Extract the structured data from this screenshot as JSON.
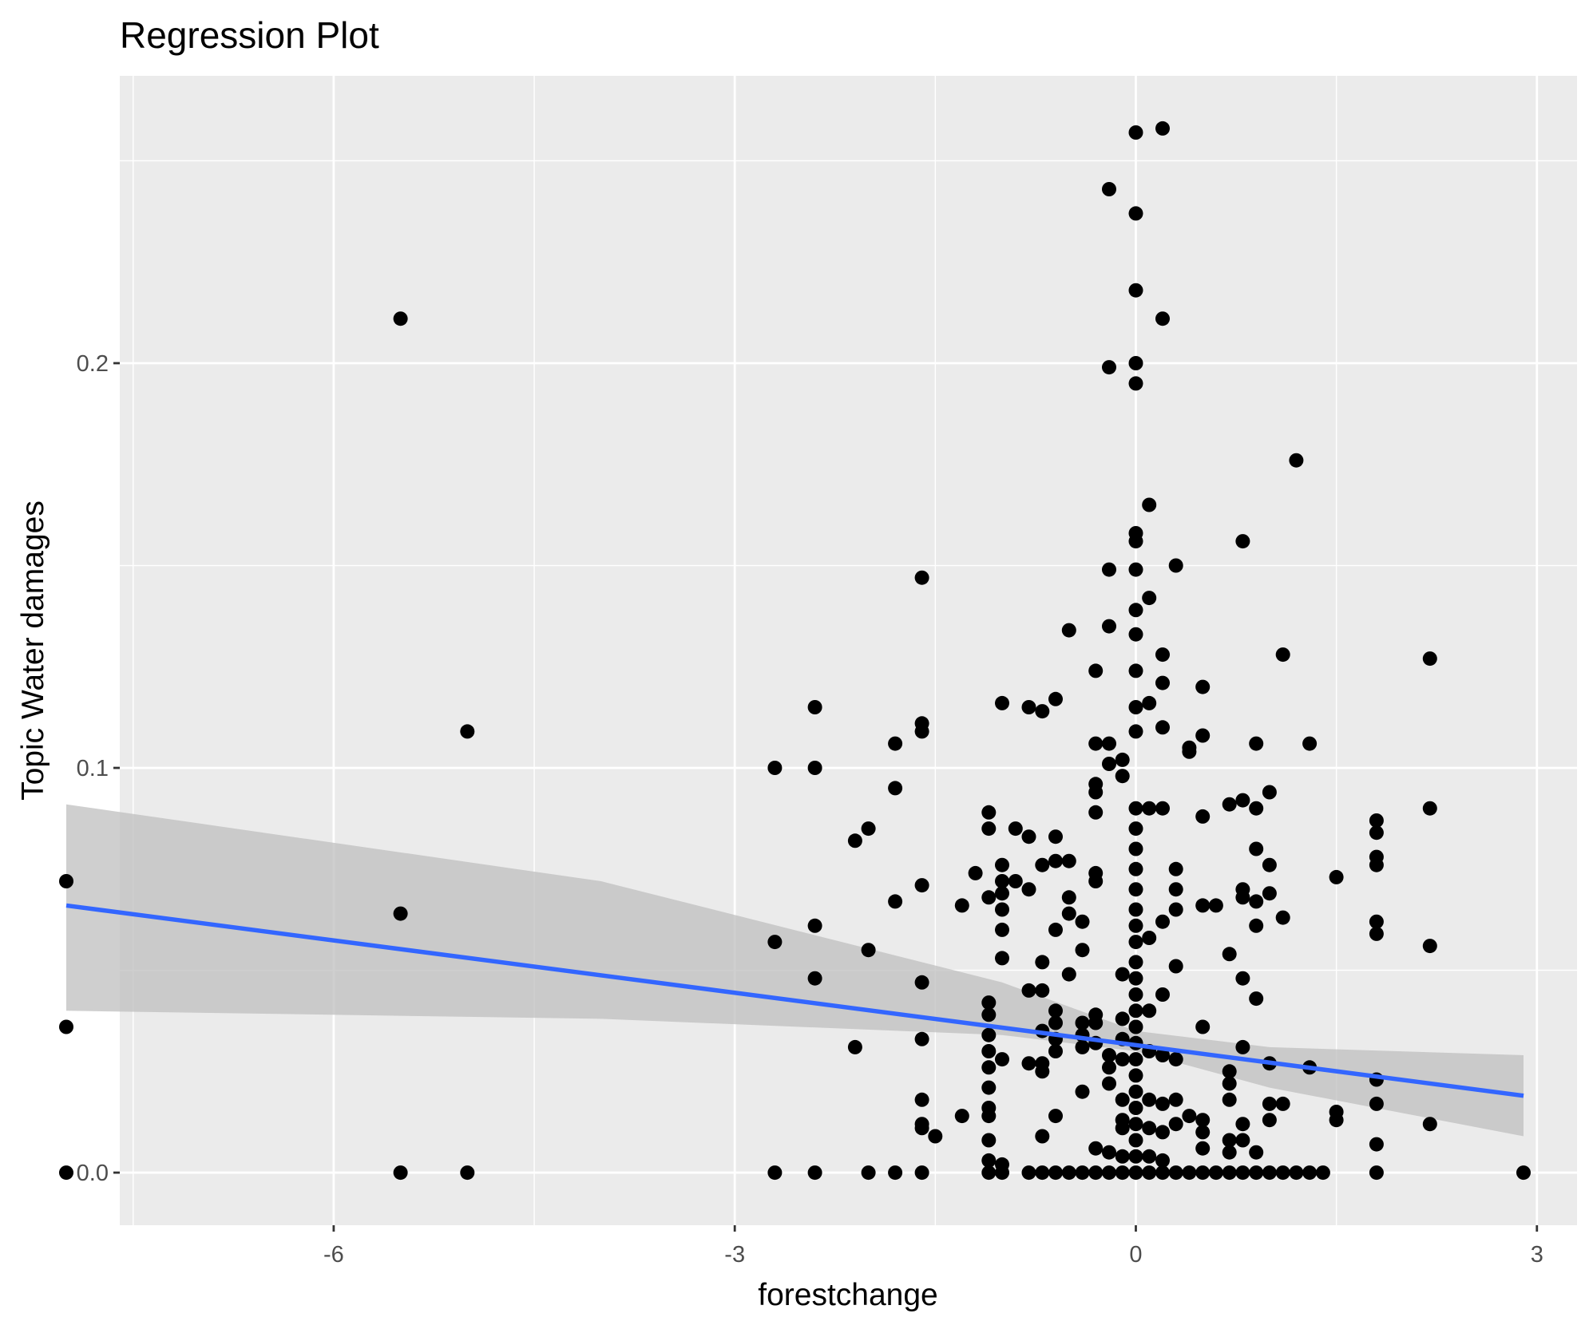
{
  "chart_data": {
    "type": "scatter",
    "title": "Regression Plot",
    "xlabel": "forestchange",
    "ylabel": "Topic Water damages",
    "xlim": [
      -7.6,
      3.3
    ],
    "ylim": [
      -0.013,
      0.271
    ],
    "x_ticks": [
      {
        "value": -6,
        "label": "-6"
      },
      {
        "value": -3,
        "label": "-3"
      },
      {
        "value": 0,
        "label": "0"
      },
      {
        "value": 3,
        "label": "3"
      }
    ],
    "y_ticks": [
      {
        "value": 0.0,
        "label": "0.0"
      },
      {
        "value": 0.1,
        "label": "0.1"
      },
      {
        "value": 0.2,
        "label": "0.2"
      }
    ],
    "grid": true,
    "colors": {
      "panel_background": "#ebebeb",
      "grid": "#ffffff",
      "points": "#000000",
      "regression_line": "#3366ff",
      "confidence_band": "#bfbfbf"
    },
    "regression": {
      "x": [
        -8.0,
        2.9
      ],
      "y": [
        0.066,
        0.019
      ],
      "band_x": [
        -8.0,
        -4.0,
        -1.0,
        0.0,
        1.0,
        2.9
      ],
      "band_upper": [
        0.091,
        0.072,
        0.047,
        0.035,
        0.031,
        0.029
      ],
      "band_lower": [
        0.04,
        0.038,
        0.034,
        0.03,
        0.021,
        0.009
      ]
    },
    "points": [
      [
        -8,
        0.072
      ],
      [
        -8,
        0.036
      ],
      [
        -8,
        0
      ],
      [
        -5.5,
        0.211
      ],
      [
        -5.5,
        0.064
      ],
      [
        -5.5,
        0
      ],
      [
        -5,
        0.109
      ],
      [
        -5,
        0
      ],
      [
        -2.7,
        0.1
      ],
      [
        -2.7,
        0.057
      ],
      [
        -2.7,
        0
      ],
      [
        -2.4,
        0.115
      ],
      [
        -2.4,
        0.1
      ],
      [
        -2.4,
        0.061
      ],
      [
        -2.4,
        0.048
      ],
      [
        -2.4,
        0
      ],
      [
        -2.1,
        0.082
      ],
      [
        -2.1,
        0.031
      ],
      [
        -2,
        0.085
      ],
      [
        -2,
        0.055
      ],
      [
        -2,
        0
      ],
      [
        -1.8,
        0.106
      ],
      [
        -1.8,
        0.095
      ],
      [
        -1.8,
        0.067
      ],
      [
        -1.8,
        0
      ],
      [
        -1.6,
        0.147
      ],
      [
        -1.6,
        0.111
      ],
      [
        -1.6,
        0.109
      ],
      [
        -1.6,
        0.071
      ],
      [
        -1.6,
        0.047
      ],
      [
        -1.6,
        0.033
      ],
      [
        -1.6,
        0.018
      ],
      [
        -1.6,
        0.012
      ],
      [
        -1.6,
        0.011
      ],
      [
        -1.6,
        0
      ],
      [
        -1.5,
        0.009
      ],
      [
        -1.3,
        0.066
      ],
      [
        -1.3,
        0.014
      ],
      [
        -1.2,
        0.074
      ],
      [
        -1.1,
        0.089
      ],
      [
        -1.1,
        0.085
      ],
      [
        -1.1,
        0.068
      ],
      [
        -1.1,
        0.042
      ],
      [
        -1.1,
        0.039
      ],
      [
        -1.1,
        0.034
      ],
      [
        -1.1,
        0.03
      ],
      [
        -1.1,
        0.026
      ],
      [
        -1.1,
        0.021
      ],
      [
        -1.1,
        0.016
      ],
      [
        -1.1,
        0.014
      ],
      [
        -1.1,
        0.008
      ],
      [
        -1.1,
        0.003
      ],
      [
        -1.1,
        0
      ],
      [
        -1,
        0.116
      ],
      [
        -1,
        0.076
      ],
      [
        -1,
        0.072
      ],
      [
        -1,
        0.069
      ],
      [
        -1,
        0.065
      ],
      [
        -1,
        0.06
      ],
      [
        -1,
        0.053
      ],
      [
        -1,
        0.028
      ],
      [
        -1,
        0.002
      ],
      [
        -1,
        0
      ],
      [
        -0.9,
        0.085
      ],
      [
        -0.9,
        0.072
      ],
      [
        -0.8,
        0.115
      ],
      [
        -0.8,
        0.083
      ],
      [
        -0.8,
        0.07
      ],
      [
        -0.8,
        0.045
      ],
      [
        -0.8,
        0.027
      ],
      [
        -0.8,
        0
      ],
      [
        -0.7,
        0.114
      ],
      [
        -0.7,
        0.076
      ],
      [
        -0.7,
        0.052
      ],
      [
        -0.7,
        0.045
      ],
      [
        -0.7,
        0.035
      ],
      [
        -0.7,
        0.027
      ],
      [
        -0.7,
        0.025
      ],
      [
        -0.7,
        0.009
      ],
      [
        -0.7,
        0
      ],
      [
        -0.6,
        0.117
      ],
      [
        -0.6,
        0.083
      ],
      [
        -0.6,
        0.077
      ],
      [
        -0.6,
        0.06
      ],
      [
        -0.6,
        0.04
      ],
      [
        -0.6,
        0.037
      ],
      [
        -0.6,
        0.033
      ],
      [
        -0.6,
        0.03
      ],
      [
        -0.6,
        0.014
      ],
      [
        -0.6,
        0
      ],
      [
        -0.5,
        0.134
      ],
      [
        -0.5,
        0.077
      ],
      [
        -0.5,
        0.068
      ],
      [
        -0.5,
        0.064
      ],
      [
        -0.5,
        0.049
      ],
      [
        -0.5,
        0
      ],
      [
        -0.4,
        0.062
      ],
      [
        -0.4,
        0.055
      ],
      [
        -0.4,
        0.037
      ],
      [
        -0.4,
        0.034
      ],
      [
        -0.4,
        0.031
      ],
      [
        -0.4,
        0.02
      ],
      [
        -0.4,
        0
      ],
      [
        -0.3,
        0.124
      ],
      [
        -0.3,
        0.106
      ],
      [
        -0.3,
        0.096
      ],
      [
        -0.3,
        0.094
      ],
      [
        -0.3,
        0.089
      ],
      [
        -0.3,
        0.074
      ],
      [
        -0.3,
        0.072
      ],
      [
        -0.3,
        0.039
      ],
      [
        -0.3,
        0.037
      ],
      [
        -0.3,
        0.032
      ],
      [
        -0.3,
        0.006
      ],
      [
        -0.3,
        0
      ],
      [
        -0.2,
        0.243
      ],
      [
        -0.2,
        0.199
      ],
      [
        -0.2,
        0.149
      ],
      [
        -0.2,
        0.135
      ],
      [
        -0.2,
        0.106
      ],
      [
        -0.2,
        0.101
      ],
      [
        -0.2,
        0.029
      ],
      [
        -0.2,
        0.026
      ],
      [
        -0.2,
        0.022
      ],
      [
        -0.2,
        0.005
      ],
      [
        -0.2,
        0
      ],
      [
        -0.1,
        0.102
      ],
      [
        -0.1,
        0.098
      ],
      [
        -0.1,
        0.049
      ],
      [
        -0.1,
        0.038
      ],
      [
        -0.1,
        0.033
      ],
      [
        -0.1,
        0.028
      ],
      [
        -0.1,
        0.018
      ],
      [
        -0.1,
        0.013
      ],
      [
        -0.1,
        0.011
      ],
      [
        -0.1,
        0.004
      ],
      [
        -0.1,
        0
      ],
      [
        0,
        0.257
      ],
      [
        0,
        0.237
      ],
      [
        0,
        0.218
      ],
      [
        0,
        0.2
      ],
      [
        0,
        0.195
      ],
      [
        0,
        0.158
      ],
      [
        0,
        0.156
      ],
      [
        0,
        0.149
      ],
      [
        0,
        0.139
      ],
      [
        0,
        0.133
      ],
      [
        0,
        0.124
      ],
      [
        0,
        0.115
      ],
      [
        0,
        0.109
      ],
      [
        0,
        0.09
      ],
      [
        0,
        0.085
      ],
      [
        0,
        0.08
      ],
      [
        0,
        0.075
      ],
      [
        0,
        0.07
      ],
      [
        0,
        0.065
      ],
      [
        0,
        0.061
      ],
      [
        0,
        0.057
      ],
      [
        0,
        0.052
      ],
      [
        0,
        0.048
      ],
      [
        0,
        0.044
      ],
      [
        0,
        0.04
      ],
      [
        0,
        0.036
      ],
      [
        0,
        0.032
      ],
      [
        0,
        0.028
      ],
      [
        0,
        0.024
      ],
      [
        0,
        0.02
      ],
      [
        0,
        0.016
      ],
      [
        0,
        0.012
      ],
      [
        0,
        0.008
      ],
      [
        0,
        0.004
      ],
      [
        0,
        0
      ],
      [
        0.1,
        0.165
      ],
      [
        0.1,
        0.142
      ],
      [
        0.1,
        0.116
      ],
      [
        0.1,
        0.09
      ],
      [
        0.1,
        0.058
      ],
      [
        0.1,
        0.04
      ],
      [
        0.1,
        0.03
      ],
      [
        0.1,
        0.018
      ],
      [
        0.1,
        0.011
      ],
      [
        0.1,
        0.004
      ],
      [
        0.1,
        0
      ],
      [
        0.2,
        0.258
      ],
      [
        0.2,
        0.211
      ],
      [
        0.2,
        0.128
      ],
      [
        0.2,
        0.121
      ],
      [
        0.2,
        0.11
      ],
      [
        0.2,
        0.09
      ],
      [
        0.2,
        0.062
      ],
      [
        0.2,
        0.044
      ],
      [
        0.2,
        0.029
      ],
      [
        0.2,
        0.017
      ],
      [
        0.2,
        0.01
      ],
      [
        0.2,
        0.003
      ],
      [
        0.2,
        0
      ],
      [
        0.3,
        0.15
      ],
      [
        0.3,
        0.075
      ],
      [
        0.3,
        0.07
      ],
      [
        0.3,
        0.065
      ],
      [
        0.3,
        0.051
      ],
      [
        0.3,
        0.028
      ],
      [
        0.3,
        0.018
      ],
      [
        0.3,
        0.012
      ],
      [
        0.3,
        0
      ],
      [
        0.4,
        0.105
      ],
      [
        0.4,
        0.104
      ],
      [
        0.4,
        0.014
      ],
      [
        0.4,
        0
      ],
      [
        0.5,
        0.12
      ],
      [
        0.5,
        0.108
      ],
      [
        0.5,
        0.088
      ],
      [
        0.5,
        0.066
      ],
      [
        0.5,
        0.036
      ],
      [
        0.5,
        0.013
      ],
      [
        0.5,
        0.01
      ],
      [
        0.5,
        0.006
      ],
      [
        0.5,
        0
      ],
      [
        0.6,
        0.066
      ],
      [
        0.6,
        0
      ],
      [
        0.7,
        0.091
      ],
      [
        0.7,
        0.054
      ],
      [
        0.7,
        0.025
      ],
      [
        0.7,
        0.022
      ],
      [
        0.7,
        0.018
      ],
      [
        0.7,
        0.008
      ],
      [
        0.7,
        0.005
      ],
      [
        0.7,
        0
      ],
      [
        0.8,
        0.156
      ],
      [
        0.8,
        0.092
      ],
      [
        0.8,
        0.07
      ],
      [
        0.8,
        0.068
      ],
      [
        0.8,
        0.048
      ],
      [
        0.8,
        0.031
      ],
      [
        0.8,
        0.012
      ],
      [
        0.8,
        0.008
      ],
      [
        0.8,
        0
      ],
      [
        0.9,
        0.106
      ],
      [
        0.9,
        0.09
      ],
      [
        0.9,
        0.08
      ],
      [
        0.9,
        0.067
      ],
      [
        0.9,
        0.061
      ],
      [
        0.9,
        0.043
      ],
      [
        0.9,
        0.005
      ],
      [
        0.9,
        0
      ],
      [
        1,
        0.094
      ],
      [
        1,
        0.076
      ],
      [
        1,
        0.069
      ],
      [
        1,
        0.027
      ],
      [
        1,
        0.017
      ],
      [
        1,
        0.013
      ],
      [
        1,
        0
      ],
      [
        1.1,
        0.128
      ],
      [
        1.1,
        0.063
      ],
      [
        1.1,
        0.017
      ],
      [
        1.1,
        0
      ],
      [
        1.2,
        0.176
      ],
      [
        1.2,
        0
      ],
      [
        1.3,
        0.106
      ],
      [
        1.3,
        0.026
      ],
      [
        1.3,
        0
      ],
      [
        1.4,
        0
      ],
      [
        1.5,
        0.073
      ],
      [
        1.5,
        0.015
      ],
      [
        1.5,
        0.013
      ],
      [
        1.8,
        0.087
      ],
      [
        1.8,
        0.084
      ],
      [
        1.8,
        0.078
      ],
      [
        1.8,
        0.076
      ],
      [
        1.8,
        0.062
      ],
      [
        1.8,
        0.059
      ],
      [
        1.8,
        0.023
      ],
      [
        1.8,
        0.017
      ],
      [
        1.8,
        0.007
      ],
      [
        1.8,
        0
      ],
      [
        2.2,
        0.127
      ],
      [
        2.2,
        0.09
      ],
      [
        2.2,
        0.056
      ],
      [
        2.2,
        0.012
      ],
      [
        2.9,
        0
      ]
    ]
  }
}
